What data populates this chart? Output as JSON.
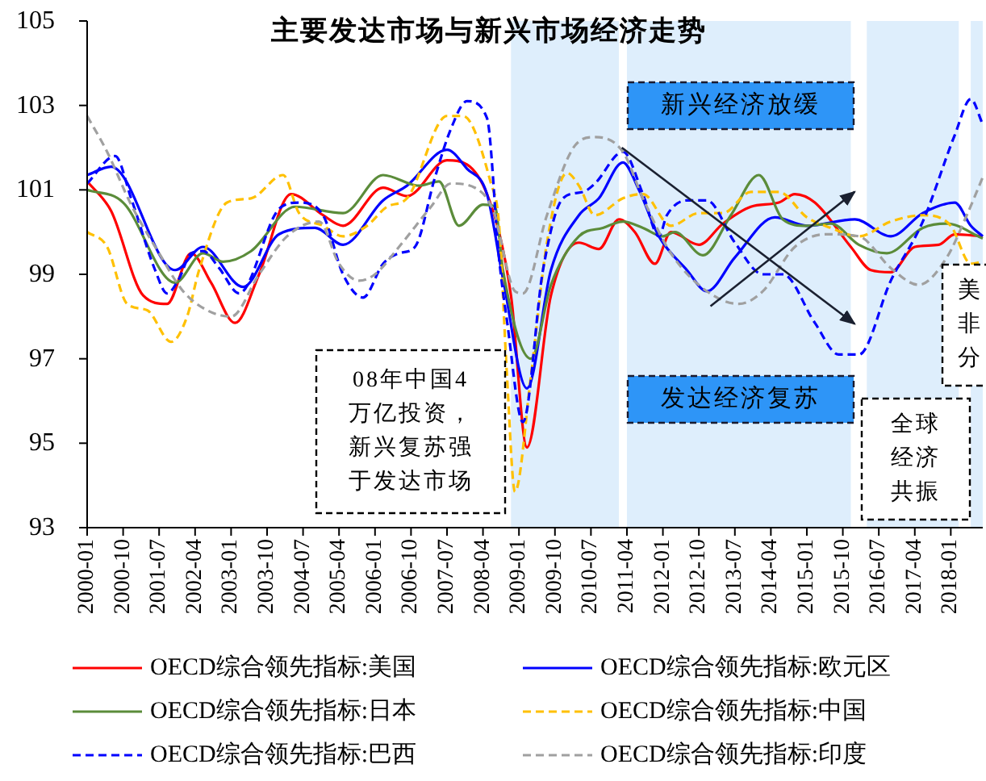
{
  "chart_data": {
    "type": "line",
    "title": "主要发达市场与新兴市场经济走势",
    "xlim": [
      "2000-01",
      "2018-09"
    ],
    "xticks": [
      "2000-01",
      "2000-10",
      "2001-07",
      "2002-04",
      "2003-01",
      "2003-10",
      "2004-07",
      "2005-04",
      "2006-01",
      "2006-10",
      "2007-07",
      "2008-04",
      "2009-01",
      "2009-10",
      "2010-07",
      "2011-04",
      "2012-01",
      "2012-10",
      "2013-07",
      "2014-04",
      "2015-01",
      "2015-10",
      "2016-07",
      "2017-04",
      "2018-01"
    ],
    "ylim": [
      93,
      105
    ],
    "yticks": [
      93,
      95,
      97,
      99,
      101,
      103,
      105
    ],
    "grid": false,
    "legend": "bottom",
    "bands": [
      {
        "axis": "x",
        "from": "2008-11",
        "to": "2011-02",
        "color": "#deeefc"
      },
      {
        "axis": "x",
        "from": "2011-04",
        "to": "2015-12",
        "color": "#deeefc"
      },
      {
        "axis": "x",
        "from": "2016-04",
        "to": "2018-03",
        "color": "#deeefc"
      },
      {
        "axis": "x",
        "from": "2018-06",
        "to": "2018-09",
        "color": "#deeefc"
      }
    ],
    "annotations": [
      "08年中国4万亿投资，新兴复苏强于发达市场",
      "新兴经济放缓",
      "发达经济复苏",
      "全球经济共振",
      "美非分"
    ],
    "series": [
      {
        "name": "OECD综合领先指标:美国",
        "color": "#ff0000",
        "line_style": "solid",
        "x": [
          "2000-01",
          "2000-07",
          "2001-03",
          "2001-09",
          "2002-03",
          "2002-08",
          "2003-02",
          "2003-08",
          "2004-04",
          "2004-12",
          "2005-05",
          "2006-03",
          "2006-09",
          "2007-07",
          "2008-05",
          "2008-11",
          "2009-03",
          "2009-09",
          "2010-04",
          "2010-09",
          "2011-02",
          "2011-06",
          "2011-11",
          "2012-03",
          "2012-10",
          "2013-04",
          "2013-11",
          "2014-06",
          "2014-10",
          "2015-03",
          "2015-12",
          "2016-05",
          "2016-10",
          "2017-04",
          "2017-10",
          "2018-02",
          "2018-09"
        ],
        "values": [
          101.2,
          100.5,
          98.5,
          98.3,
          99.5,
          98.8,
          97.85,
          99.0,
          100.9,
          100.4,
          100.15,
          101.05,
          100.85,
          101.7,
          100.9,
          98.5,
          94.9,
          98.5,
          99.75,
          99.6,
          100.3,
          100.0,
          99.25,
          100.0,
          99.7,
          100.2,
          100.6,
          100.7,
          100.9,
          100.7,
          99.65,
          99.1,
          99.05,
          99.65,
          99.7,
          99.95,
          99.9
        ]
      },
      {
        "name": "OECD综合领先指标:欧元区",
        "color": "#0000ff",
        "line_style": "solid",
        "x": [
          "2000-01",
          "2000-07",
          "2001-11",
          "2002-06",
          "2003-04",
          "2004-01",
          "2004-10",
          "2005-05",
          "2006-03",
          "2006-09",
          "2007-07",
          "2007-12",
          "2008-05",
          "2008-09",
          "2009-03",
          "2009-09",
          "2010-04",
          "2010-09",
          "2011-03",
          "2011-07",
          "2011-12",
          "2012-07",
          "2012-12",
          "2013-07",
          "2014-05",
          "2015-01",
          "2016-01",
          "2016-10",
          "2017-06",
          "2018-02",
          "2018-06",
          "2018-09"
        ],
        "values": [
          101.35,
          101.55,
          99.1,
          99.65,
          98.7,
          99.95,
          100.1,
          99.7,
          100.75,
          101.1,
          101.95,
          101.5,
          100.9,
          98.9,
          96.3,
          99.1,
          100.4,
          100.8,
          101.65,
          101.0,
          99.9,
          99.1,
          98.6,
          99.4,
          100.35,
          100.15,
          100.3,
          99.9,
          100.45,
          100.7,
          100.15,
          99.9
        ]
      },
      {
        "name": "OECD综合领先指标:日本",
        "color": "#5b8c3a",
        "line_style": "solid",
        "x": [
          "2000-01",
          "2000-10",
          "2001-11",
          "2002-06",
          "2002-11",
          "2003-06",
          "2004-05",
          "2005-05",
          "2006-03",
          "2006-12",
          "2007-05",
          "2007-10",
          "2008-04",
          "2008-07",
          "2008-09",
          "2009-04",
          "2009-09",
          "2010-04",
          "2010-10",
          "2011-03",
          "2011-08",
          "2012-01",
          "2012-04",
          "2012-11",
          "2013-06",
          "2014-01",
          "2014-07",
          "2015-01",
          "2015-07",
          "2016-02",
          "2016-09",
          "2017-06",
          "2017-12",
          "2018-09"
        ],
        "values": [
          101.0,
          100.7,
          98.8,
          99.5,
          99.3,
          99.55,
          100.6,
          100.45,
          101.35,
          101.1,
          101.2,
          100.15,
          100.65,
          100.6,
          99.1,
          97.0,
          98.75,
          99.9,
          100.1,
          100.25,
          100.1,
          99.9,
          100.0,
          99.45,
          100.4,
          101.35,
          100.3,
          100.15,
          100.2,
          99.7,
          99.5,
          100.1,
          100.2,
          99.85
        ]
      },
      {
        "name": "OECD综合领先指标:中国",
        "color": "#ffc000",
        "line_style": "dashed",
        "x": [
          "2000-01",
          "2000-06",
          "2000-11",
          "2001-04",
          "2001-10",
          "2002-02",
          "2002-05",
          "2002-12",
          "2003-06",
          "2004-02",
          "2004-06",
          "2004-12",
          "2005-05",
          "2005-11",
          "2006-04",
          "2006-09",
          "2007-07",
          "2007-11",
          "2008-06",
          "2008-08",
          "2008-10",
          "2008-12",
          "2009-04",
          "2009-08",
          "2010-01",
          "2010-04",
          "2010-08",
          "2011-03",
          "2011-08",
          "2012-03",
          "2012-10",
          "2013-04",
          "2013-11",
          "2014-06",
          "2015-01",
          "2015-07",
          "2016-02",
          "2016-10",
          "2017-06",
          "2018-01",
          "2018-06",
          "2018-09"
        ],
        "values": [
          100.0,
          99.65,
          98.3,
          98.15,
          97.4,
          98.0,
          99.1,
          100.7,
          100.8,
          101.35,
          100.45,
          100.15,
          99.9,
          100.15,
          100.6,
          100.8,
          102.75,
          102.75,
          101.15,
          100.2,
          96.6,
          93.85,
          96.6,
          99.75,
          101.4,
          101.1,
          100.4,
          100.8,
          100.9,
          100.15,
          100.45,
          100.45,
          100.95,
          100.95,
          100.35,
          100.1,
          99.9,
          100.25,
          100.4,
          100.15,
          99.25,
          99.3
        ]
      },
      {
        "name": "OECD综合领先指标:巴西",
        "color": "#0000ff",
        "line_style": "dashed",
        "x": [
          "2000-01",
          "2000-08",
          "2000-12",
          "2001-06",
          "2001-09",
          "2001-12",
          "2002-03",
          "2002-06",
          "2002-10",
          "2003-03",
          "2004-01",
          "2004-06",
          "2004-12",
          "2005-05",
          "2005-10",
          "2006-03",
          "2006-07",
          "2006-11",
          "2007-04",
          "2007-08",
          "2007-12",
          "2008-05",
          "2008-08",
          "2008-10",
          "2009-02",
          "2009-07",
          "2009-12",
          "2010-05",
          "2010-08",
          "2011-03",
          "2011-08",
          "2011-12",
          "2012-02",
          "2012-07",
          "2012-12",
          "2013-07",
          "2014-02",
          "2014-07",
          "2015-03",
          "2015-09",
          "2016-02",
          "2016-10",
          "2017-06",
          "2018-02",
          "2018-06",
          "2018-09"
        ],
        "values": [
          101.15,
          101.8,
          100.8,
          99.1,
          98.55,
          98.9,
          99.5,
          99.55,
          99.15,
          98.55,
          100.55,
          100.7,
          100.4,
          99.0,
          98.45,
          99.25,
          99.5,
          99.65,
          101.3,
          102.45,
          103.1,
          102.7,
          99.4,
          97.9,
          95.5,
          99.1,
          100.8,
          100.95,
          101.15,
          101.9,
          100.9,
          99.9,
          100.4,
          100.75,
          100.75,
          99.75,
          99.0,
          99.0,
          97.85,
          97.1,
          97.1,
          98.85,
          100.25,
          102.3,
          103.15,
          102.55
        ]
      },
      {
        "name": "OECD综合领先指标:印度",
        "color": "#a0a0a0",
        "line_style": "dashed",
        "x": [
          "2000-01",
          "2000-06",
          "2000-12",
          "2001-07",
          "2002-01",
          "2002-07",
          "2003-01",
          "2003-08",
          "2004-03",
          "2004-11",
          "2005-04",
          "2005-09",
          "2006-01",
          "2006-07",
          "2007-03",
          "2007-08",
          "2008-02",
          "2008-07",
          "2008-08",
          "2008-12",
          "2009-02",
          "2009-08",
          "2010-03",
          "2010-08",
          "2011-03",
          "2011-08",
          "2012-03",
          "2012-12",
          "2013-08",
          "2014-02",
          "2014-10",
          "2015-06",
          "2016-02",
          "2016-10",
          "2017-05",
          "2017-12",
          "2018-05",
          "2018-09"
        ],
        "values": [
          102.75,
          101.9,
          100.65,
          99.5,
          98.6,
          98.15,
          98.0,
          99.0,
          99.9,
          100.25,
          99.25,
          98.85,
          99.0,
          99.65,
          100.6,
          101.15,
          101.05,
          100.4,
          100.0,
          98.6,
          98.55,
          100.4,
          102.05,
          102.25,
          101.9,
          100.8,
          99.5,
          98.6,
          98.3,
          98.6,
          99.65,
          99.95,
          99.9,
          99.15,
          98.75,
          99.4,
          100.4,
          101.3
        ]
      }
    ]
  }
}
